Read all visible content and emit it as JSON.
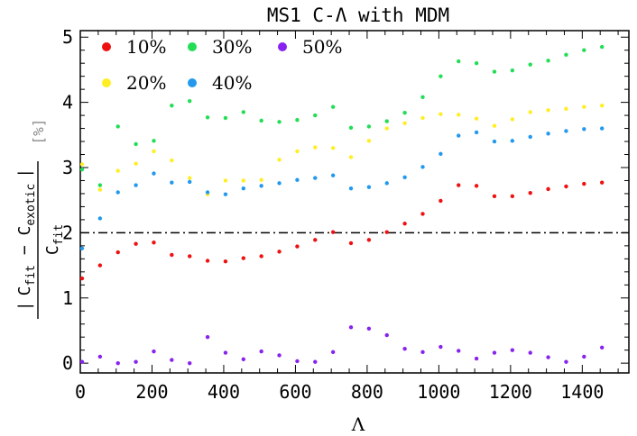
{
  "chart_data": {
    "type": "scatter",
    "title": "MS1 C-Λ  with MDM",
    "xlabel": "Λ",
    "ylabel": {
      "numerator_left": "|",
      "numerator_a": "C",
      "numerator_a_sub": "fit",
      "numerator_minus": " − ",
      "numerator_b": "C",
      "numerator_b_sub": "exotic",
      "numerator_right": "|",
      "denominator": "C",
      "denominator_sub": "fit",
      "unit": "[%]"
    },
    "xlim": [
      0,
      1530
    ],
    "ylim": [
      -0.15,
      5.1
    ],
    "x_ticks": [
      "0",
      "200",
      "400",
      "600",
      "800",
      "1000",
      "1200",
      "1400"
    ],
    "y_ticks": [
      "0",
      "1",
      "2",
      "3",
      "4",
      "5"
    ],
    "reference_line": {
      "y": 2,
      "style": "dash-dot",
      "color": "#000000"
    },
    "legend_placement": "top-left",
    "x": [
      5,
      55,
      105,
      155,
      205,
      255,
      305,
      355,
      405,
      455,
      505,
      555,
      605,
      655,
      705,
      755,
      805,
      855,
      905,
      955,
      1005,
      1055,
      1105,
      1155,
      1205,
      1255,
      1305,
      1355,
      1405,
      1455
    ],
    "series": [
      {
        "name": "10%",
        "color": "#ee1111",
        "values": [
          1.3,
          1.5,
          1.7,
          1.83,
          1.85,
          1.66,
          1.64,
          1.57,
          1.56,
          1.61,
          1.64,
          1.71,
          1.79,
          1.89,
          2.01,
          1.84,
          1.89,
          2.01,
          2.14,
          2.29,
          2.49,
          2.73,
          2.72,
          2.56,
          2.56,
          2.61,
          2.67,
          2.71,
          2.75,
          2.77
        ]
      },
      {
        "name": "20%",
        "color": "#ffee22",
        "values": [
          3.05,
          2.66,
          2.95,
          3.06,
          3.25,
          3.11,
          2.84,
          2.59,
          2.8,
          2.8,
          2.81,
          3.12,
          3.25,
          3.31,
          3.3,
          3.16,
          3.41,
          3.6,
          3.68,
          3.76,
          3.82,
          3.81,
          3.75,
          3.64,
          3.74,
          3.85,
          3.88,
          3.9,
          3.93,
          3.95
        ]
      },
      {
        "name": "30%",
        "color": "#22dd55",
        "values": [
          2.97,
          2.73,
          3.63,
          3.36,
          3.41,
          3.95,
          4.02,
          3.77,
          3.76,
          3.85,
          3.72,
          3.7,
          3.73,
          3.8,
          3.93,
          3.61,
          3.63,
          3.71,
          3.84,
          4.08,
          4.4,
          4.63,
          4.6,
          4.47,
          4.49,
          4.58,
          4.64,
          4.73,
          4.8,
          4.85
        ]
      },
      {
        "name": "40%",
        "color": "#2299ee",
        "values": [
          1.76,
          2.22,
          2.62,
          2.73,
          2.91,
          2.77,
          2.78,
          2.62,
          2.59,
          2.68,
          2.72,
          2.76,
          2.81,
          2.84,
          2.88,
          2.68,
          2.7,
          2.76,
          2.85,
          3.01,
          3.21,
          3.49,
          3.54,
          3.4,
          3.41,
          3.47,
          3.52,
          3.56,
          3.59,
          3.6
        ]
      },
      {
        "name": "50%",
        "color": "#8822ee",
        "values": [
          0.02,
          0.1,
          0.0,
          0.02,
          0.18,
          0.05,
          0.0,
          0.4,
          0.16,
          0.06,
          0.18,
          0.12,
          0.03,
          0.02,
          0.17,
          0.55,
          0.53,
          0.43,
          0.22,
          0.17,
          0.25,
          0.19,
          0.07,
          0.16,
          0.2,
          0.16,
          0.09,
          0.02,
          0.1,
          0.24
        ]
      }
    ]
  }
}
